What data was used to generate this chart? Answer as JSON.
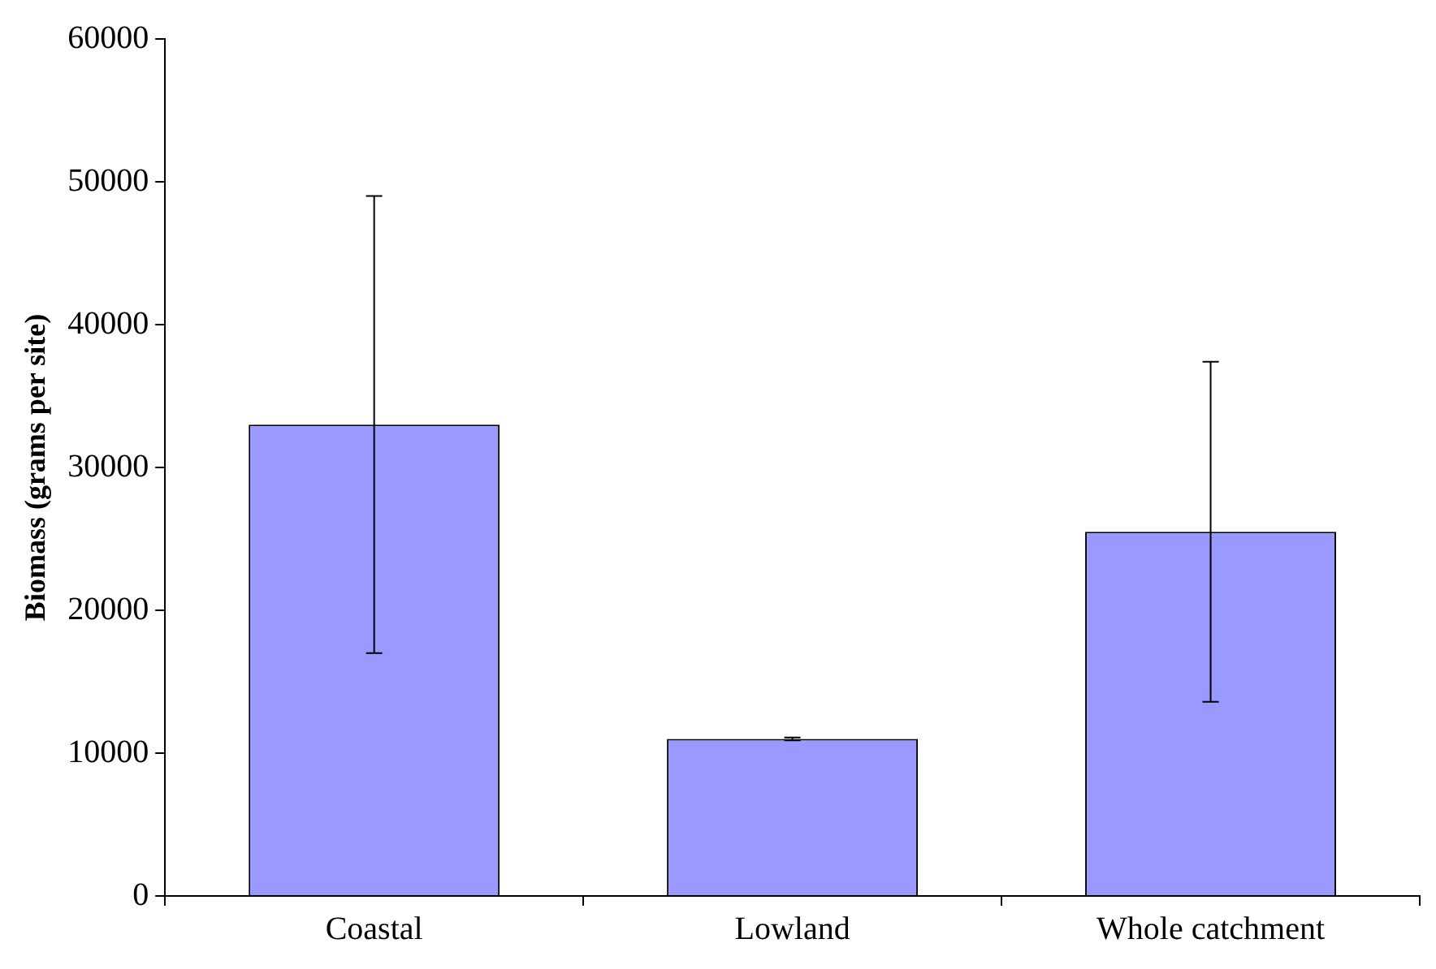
{
  "chart_data": {
    "type": "bar",
    "ylabel": "Biomass (grams per site)",
    "categories": [
      "Coastal",
      "Lowland",
      "Whole catchment"
    ],
    "values": [
      33000,
      11000,
      25500
    ],
    "errors": [
      16000,
      100,
      11900
    ],
    "color": "#9999ff",
    "ylim": [
      0,
      60000
    ],
    "yticks": [
      0,
      10000,
      20000,
      30000,
      40000,
      50000,
      60000
    ]
  }
}
